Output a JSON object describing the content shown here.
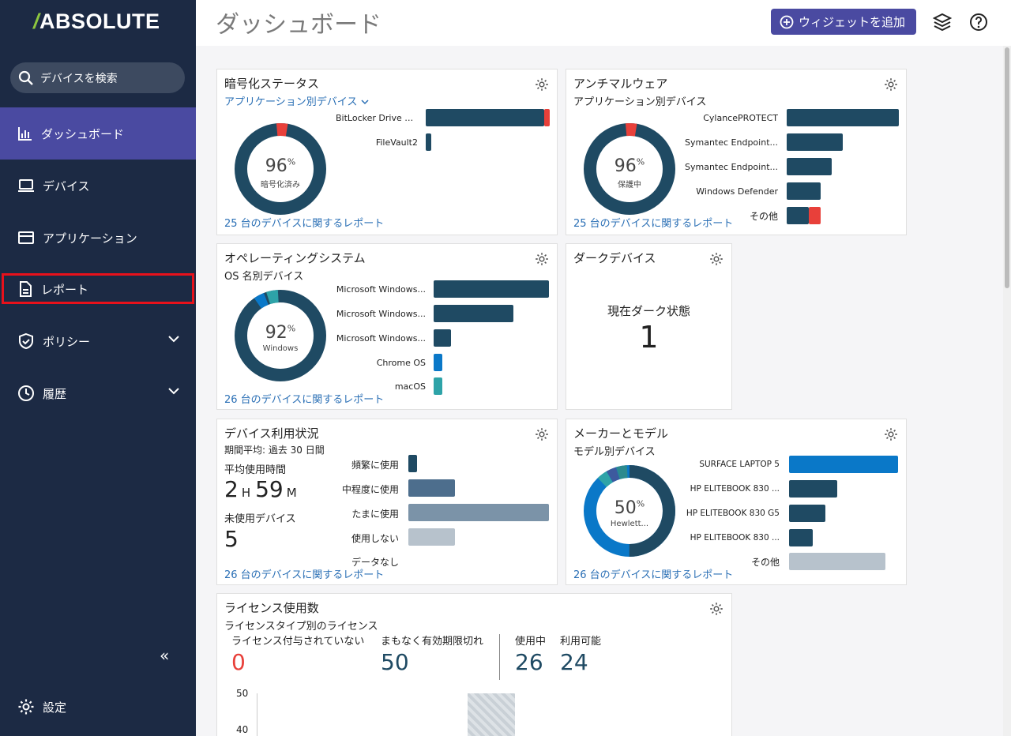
{
  "app": {
    "logo": "ABSOLUTE"
  },
  "sidebar": {
    "search_placeholder": "デバイスを検索",
    "items": [
      {
        "label": "ダッシュボード"
      },
      {
        "label": "デバイス"
      },
      {
        "label": "アプリケーション"
      },
      {
        "label": "レポート"
      },
      {
        "label": "ポリシー"
      },
      {
        "label": "履歴"
      }
    ],
    "collapse": "«",
    "settings_label": "設定"
  },
  "header": {
    "title": "ダッシュボード",
    "add_widget": "ウィジェットを追加"
  },
  "colors": {
    "dark": "#1f4a63",
    "red": "#e8403a",
    "blue": "#0a78c8",
    "teal": "#2ea3a8",
    "accent": "#4a4aa1"
  },
  "widgets": {
    "encryption": {
      "title": "暗号化ステータス",
      "subtitle": "アプリケーション別デバイス",
      "percent": "96",
      "percent_sign": "%",
      "caption": "暗号化済み",
      "report": "25 台のデバイスに関するレポート",
      "bars": [
        {
          "label": "BitLocker Drive E...",
          "value": 24,
          "error": 1
        },
        {
          "label": "FileVault2",
          "value": 1,
          "error": 0
        }
      ]
    },
    "antimalware": {
      "title": "アンチマルウェア",
      "subtitle": "アプリケーション別デバイス",
      "percent": "96",
      "percent_sign": "%",
      "caption": "保護中",
      "report": "25 台のデバイスに関するレポート",
      "bars": [
        {
          "label": "CylancePROTECT",
          "value": 10,
          "error": 0
        },
        {
          "label": "Symantec Endpoint...",
          "value": 5,
          "error": 0
        },
        {
          "label": "Symantec Endpoint...",
          "value": 4,
          "error": 0
        },
        {
          "label": "Windows Defender",
          "value": 3,
          "error": 0
        },
        {
          "label": "その他",
          "value": 2,
          "error": 1
        }
      ]
    },
    "os": {
      "title": "オペレーティングシステム",
      "subtitle": "OS 名別デバイス",
      "percent": "92",
      "percent_sign": "%",
      "caption": "Windows",
      "report": "26 台のデバイスに関するレポート",
      "bars": [
        {
          "label": "Microsoft Windows...",
          "value": 12,
          "color": "#1f4a63"
        },
        {
          "label": "Microsoft Windows...",
          "value": 8,
          "color": "#1f4a63"
        },
        {
          "label": "Microsoft Windows...",
          "value": 2,
          "color": "#1f4a63"
        },
        {
          "label": "Chrome OS",
          "value": 1,
          "color": "#0a78c8"
        },
        {
          "label": "macOS",
          "value": 1,
          "color": "#2ea3a8"
        }
      ]
    },
    "dark": {
      "title": "ダークデバイス",
      "label": "現在ダーク状態",
      "value": "1"
    },
    "usage": {
      "title": "デバイス利用状況",
      "subtitle": "期間平均: 過去 30 日間",
      "avg_label": "平均使用時間",
      "hours": "2",
      "hours_unit": "H",
      "minutes": "59",
      "minutes_unit": "M",
      "unused_label": "未使用デバイス",
      "unused": "5",
      "report": "26 台のデバイスに関するレポート",
      "bars": [
        {
          "label": "頻繁に使用",
          "value": 1,
          "color": "#1f4a63"
        },
        {
          "label": "中程度に使用",
          "value": 5,
          "color": "#4d6e8d"
        },
        {
          "label": "たまに使用",
          "value": 15,
          "color": "#7b93a8"
        },
        {
          "label": "使用しない",
          "value": 5,
          "color": "#b7c2cc"
        },
        {
          "label": "データなし",
          "value": 0,
          "color": "#b7c2cc"
        }
      ]
    },
    "maker": {
      "title": "メーカーとモデル",
      "subtitle": "モデル別デバイス",
      "percent": "50",
      "percent_sign": "%",
      "caption": "Hewlett...",
      "report": "26 台のデバイスに関するレポート",
      "bars": [
        {
          "label": "SURFACE LAPTOP 5",
          "value": 9,
          "color": "#0a78c8"
        },
        {
          "label": "HP ELITEBOOK 830 ...",
          "value": 4,
          "color": "#1f4a63"
        },
        {
          "label": "HP ELITEBOOK 830 G5",
          "value": 3,
          "color": "#1f4a63"
        },
        {
          "label": "HP ELITEBOOK 830 ...",
          "value": 2,
          "color": "#1f4a63"
        },
        {
          "label": "その他",
          "value": 8,
          "color": "#b7c2cc"
        }
      ]
    },
    "license": {
      "title": "ライセンス使用数",
      "subtitle": "ライセンスタイプ別のライセンス",
      "stats": [
        {
          "label": "ライセンス付与されていない",
          "value": "0"
        },
        {
          "label": "まもなく有効期限切れ",
          "value": "50"
        },
        {
          "label": "使用中",
          "value": "26"
        },
        {
          "label": "利用可能",
          "value": "24"
        }
      ],
      "axis": [
        "50",
        "40"
      ]
    }
  }
}
